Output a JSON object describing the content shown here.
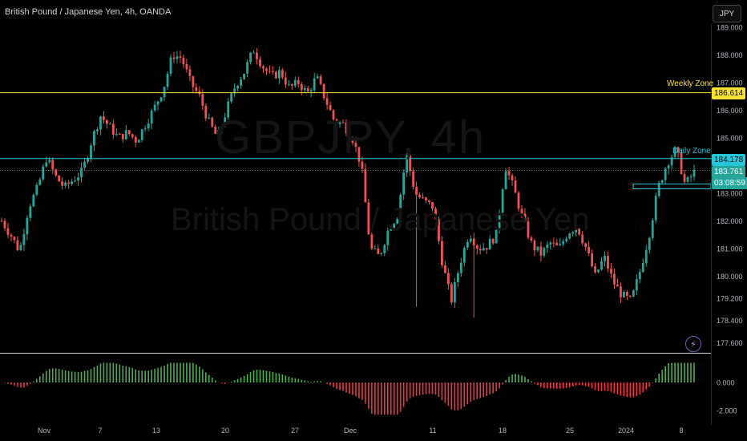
{
  "header": {
    "title": "British Pound / Japanese Yen, 4h, OANDA",
    "currency_button": "JPY"
  },
  "watermark": {
    "symbol": "GBPJPY, 4h",
    "name": "British Pound / Japanese Yen"
  },
  "zones": [
    {
      "name": "Weekly Zone",
      "price": 186.614,
      "color": "#f9e232"
    },
    {
      "name": "Daily Zone",
      "price": 184.178,
      "color": "#26c6da"
    }
  ],
  "price_tags": {
    "weekly": "186.614",
    "daily": "184.178",
    "last": "183.761",
    "countdown": "03:08:59"
  },
  "colors": {
    "up": "#26a69a",
    "down": "#ef5350",
    "osc_up": "#4caf50",
    "osc_down": "#f23645"
  },
  "chart_data": {
    "type": "candlestick",
    "y_ticks": [
      "189.000",
      "188.000",
      "187.000",
      "186.000",
      "185.000",
      "183.000",
      "182.000",
      "181.000",
      "180.000",
      "179.200",
      "178.400",
      "177.600"
    ],
    "ylim": [
      177.2,
      189.4
    ],
    "x_ticks": [
      "Nov",
      "7",
      "13",
      "20",
      "27",
      "Dec",
      "11",
      "18",
      "25",
      "2024",
      "8"
    ],
    "close_path": [
      182.0,
      181.5,
      180.9,
      182.5,
      183.2,
      184.3,
      183.6,
      183.2,
      183.5,
      183.8,
      184.9,
      185.8,
      185.4,
      185.0,
      185.2,
      184.9,
      185.5,
      186.1,
      186.8,
      188.0,
      187.9,
      187.0,
      186.5,
      185.6,
      185.0,
      186.0,
      186.9,
      187.4,
      188.2,
      187.6,
      187.2,
      187.4,
      186.8,
      187.0,
      186.6,
      187.2,
      186.4,
      185.6,
      185.5,
      185.0,
      184.0,
      181.0,
      180.7,
      181.7,
      182.2,
      184.4,
      183.0,
      182.7,
      182.5,
      180.5,
      179.1,
      180.5,
      181.6,
      181.0,
      181.1,
      181.5,
      184.0,
      183.1,
      182.0,
      181.1,
      180.8,
      181.2,
      181.0,
      181.6,
      181.8,
      181.0,
      180.0,
      180.7,
      179.8,
      179.3,
      179.1,
      180.2,
      181.5,
      183.2,
      184.1,
      184.6,
      183.3,
      183.76
    ],
    "oscillator": {
      "ticks": [
        "0.000",
        "-2.000"
      ],
      "ylim": [
        -2.6,
        1.6
      ]
    }
  }
}
